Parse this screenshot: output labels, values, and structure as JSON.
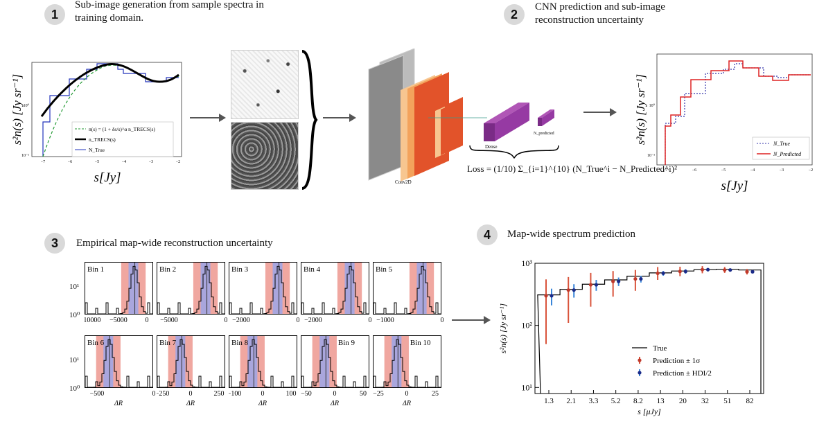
{
  "steps": [
    {
      "number": "1",
      "title_line1": "Sub-image generation  from sample spectra in",
      "title_line2": "training domain."
    },
    {
      "number": "2",
      "title_line1": "CNN prediction and sub-image",
      "title_line2": "reconstruction uncertainty"
    },
    {
      "number": "3",
      "title_line1": "Empirical map-wide reconstruction uncertainty",
      "title_line2": ""
    },
    {
      "number": "4",
      "title_line1": "Map-wide spectrum prediction",
      "title_line2": ""
    }
  ],
  "panel1": {
    "ylabel": "s²n(s) [Jy sr⁻¹]",
    "xlabel": "s[Jy]",
    "xticks": [
      "−7",
      "−6",
      "−5",
      "−4",
      "−3",
      "−2"
    ],
    "yticks": [
      "10⁰",
      "10⁻¹"
    ],
    "legend": [
      "n(s) = (1 + δs/s)^α n_TRECS(s)",
      "n_TRECS(s)",
      "N_True"
    ]
  },
  "cnn": {
    "conv_label": "Conv2D",
    "dense_label": "Dense",
    "out_label": "N_predicted",
    "loss_prefix": "Loss",
    "loss_formula": "= (1/10) Σ_{i=1}^{10} (N_True^i − N_Predicted^i)²"
  },
  "panel2": {
    "ylabel": "s²n(s) [Jy sr⁻¹]",
    "xlabel": "s[Jy]",
    "xticks": [
      "−7",
      "−6",
      "−5",
      "−4",
      "−3",
      "−2"
    ],
    "yticks": [
      "10⁰",
      "10⁻¹"
    ],
    "legend": [
      "N_True",
      "N_Predicted"
    ]
  },
  "histograms": [
    {
      "label": "Bin 1",
      "xticks": [
        "−10000",
        "−5000",
        "0"
      ]
    },
    {
      "label": "Bin 2",
      "xticks": [
        "−5000",
        "0"
      ]
    },
    {
      "label": "Bin 3",
      "xticks": [
        "−2000",
        "0"
      ]
    },
    {
      "label": "Bin 4",
      "xticks": [
        "−2000",
        "0"
      ]
    },
    {
      "label": "Bin 5",
      "xticks": [
        "−1000",
        "0"
      ]
    },
    {
      "label": "Bin 6",
      "xticks": [
        "−500",
        "0"
      ]
    },
    {
      "label": "Bin 7",
      "xticks": [
        "−250",
        "0",
        "250"
      ]
    },
    {
      "label": "Bin 8",
      "xticks": [
        "−100",
        "0",
        "100"
      ]
    },
    {
      "label": "Bin 9",
      "xticks": [
        "−50",
        "0",
        "50"
      ]
    },
    {
      "label": "Bin 10",
      "xticks": [
        "−25",
        "0",
        "25"
      ]
    }
  ],
  "hist_ylabels": [
    "10¹",
    "10⁰"
  ],
  "hist_xlabel": "ΔR",
  "chart_data": {
    "type": "scatter",
    "title": "",
    "xlabel": "s [μJy]",
    "ylabel": "s²n(s) [Jy sr⁻¹]",
    "categories": [
      "1.3",
      "2.1",
      "3.3",
      "5.2",
      "8.2",
      "13",
      "20",
      "32",
      "51",
      "82"
    ],
    "yscale": "log",
    "ylim": [
      8,
      1000
    ],
    "yticks": [
      "10³",
      "10²",
      "10¹"
    ],
    "legend_position": "lower-right",
    "series": [
      {
        "name": "True",
        "type": "step",
        "values": [
          310,
          380,
          460,
          540,
          620,
          700,
          750,
          790,
          800,
          780
        ]
      },
      {
        "name": "Prediction ± 1σ",
        "color": "#d9533a",
        "values": [
          300,
          370,
          450,
          510,
          560,
          690,
          740,
          790,
          780,
          730
        ],
        "err_low": [
          250,
          260,
          250,
          220,
          200,
          150,
          120,
          100,
          80,
          70
        ],
        "err_high": [
          250,
          230,
          250,
          240,
          220,
          180,
          140,
          110,
          90,
          80
        ]
      },
      {
        "name": "Prediction ± HDI/2",
        "color": "#3a86d9",
        "values": [
          300,
          370,
          450,
          510,
          560,
          690,
          740,
          790,
          780,
          730
        ],
        "err_low": [
          90,
          90,
          90,
          80,
          70,
          60,
          60,
          50,
          40,
          40
        ],
        "err_high": [
          90,
          90,
          90,
          80,
          70,
          60,
          60,
          50,
          40,
          40
        ]
      }
    ]
  }
}
